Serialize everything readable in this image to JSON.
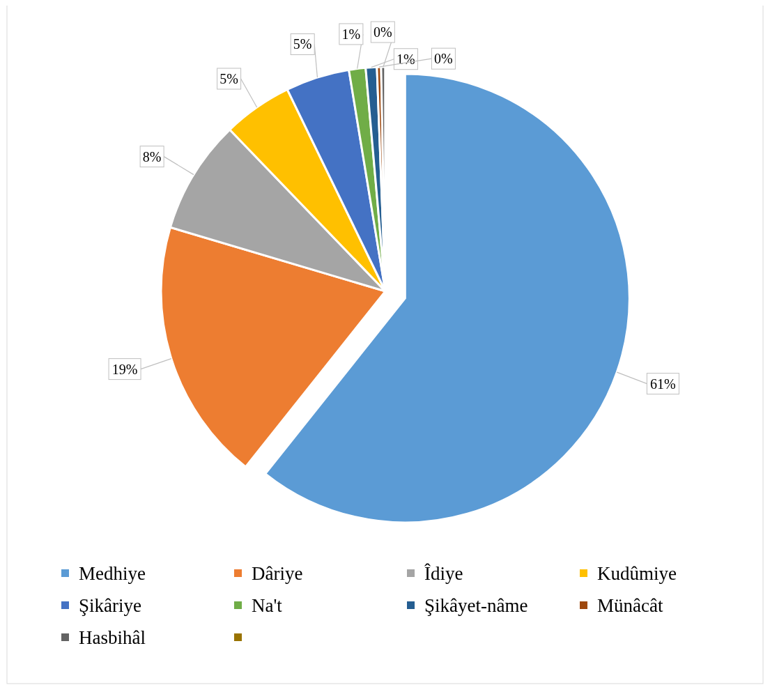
{
  "chart_data": {
    "type": "pie",
    "categories": [
      "Medhiye",
      "Dâriye",
      "Îdiye",
      "Kudûmiye",
      "Şikâriye",
      "Na't",
      "Şikâyet-nâme",
      "Münâcât",
      "Hasbihâl",
      null
    ],
    "values": [
      60.7,
      18.9,
      8.2,
      5.0,
      4.6,
      1.2,
      0.8,
      0.3,
      0.3,
      0
    ],
    "value_labels": [
      "61%",
      "19%",
      "8%",
      "5%",
      "5%",
      "1%",
      "1%",
      "0%",
      "0%",
      null
    ],
    "colors": [
      "#5b9bd5",
      "#ed7d31",
      "#a5a5a5",
      "#ffc000",
      "#4472c4",
      "#70ad47",
      "#255e91",
      "#9e480e",
      "#636363",
      "#997300"
    ],
    "legend": "bottom"
  }
}
